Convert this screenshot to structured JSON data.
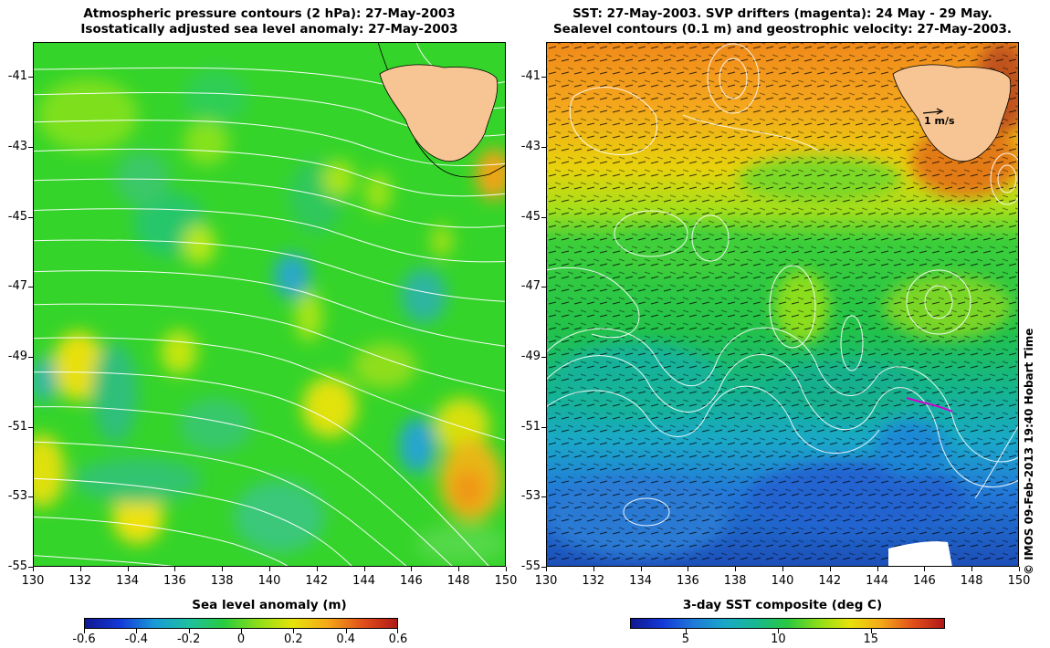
{
  "left_panel": {
    "title_line1": "Atmospheric pressure contours (2 hPa): 27-May-2003",
    "title_line2": "Isostatically adjusted sea level anomaly: 27-May-2003",
    "colorbar_label": "Sea level anomaly (m)",
    "colorbar_ticks": [
      "-0.6",
      "-0.4",
      "-0.2",
      "0",
      "0.2",
      "0.4",
      "0.6"
    ],
    "colorbar_values": [
      -0.6,
      -0.4,
      -0.2,
      0,
      0.2,
      0.4,
      0.6
    ],
    "colorbar_range": [
      -0.6,
      0.6
    ]
  },
  "right_panel": {
    "title_line1": "SST: 27-May-2003. SVP drifters (magenta): 24 May - 29 May.",
    "title_line2": "Sealevel contours (0.1 m) and geostrophic velocity: 27-May-2003.",
    "colorbar_label": "3-day SST composite (deg C)",
    "colorbar_ticks": [
      "5",
      "10",
      "15"
    ],
    "colorbar_values": [
      5,
      10,
      15
    ],
    "colorbar_range": [
      2,
      19
    ],
    "velocity_scale_label": "1 m/s"
  },
  "latitude_ticks": [
    "-41",
    "-43",
    "-45",
    "-47",
    "-49",
    "-51",
    "-53",
    "-55"
  ],
  "latitude_values": [
    -41,
    -43,
    -45,
    -47,
    -49,
    -51,
    -53,
    -55
  ],
  "longitude_ticks": [
    "130",
    "132",
    "134",
    "136",
    "138",
    "140",
    "142",
    "144",
    "146",
    "148",
    "150"
  ],
  "longitude_values": [
    130,
    132,
    134,
    136,
    138,
    140,
    142,
    144,
    146,
    148,
    150
  ],
  "map_extent": {
    "lon": [
      130,
      150
    ],
    "lat": [
      -55,
      -40
    ]
  },
  "credit": "© IMOS 09-Feb-2013 19:40 Hobart Time",
  "colors": {
    "land": "#f7c594",
    "sla_background": "#35d42a",
    "sst_warm": "#f2a21c",
    "sst_cold": "#1f6fd8",
    "pressure_contour": "#ffffff"
  }
}
